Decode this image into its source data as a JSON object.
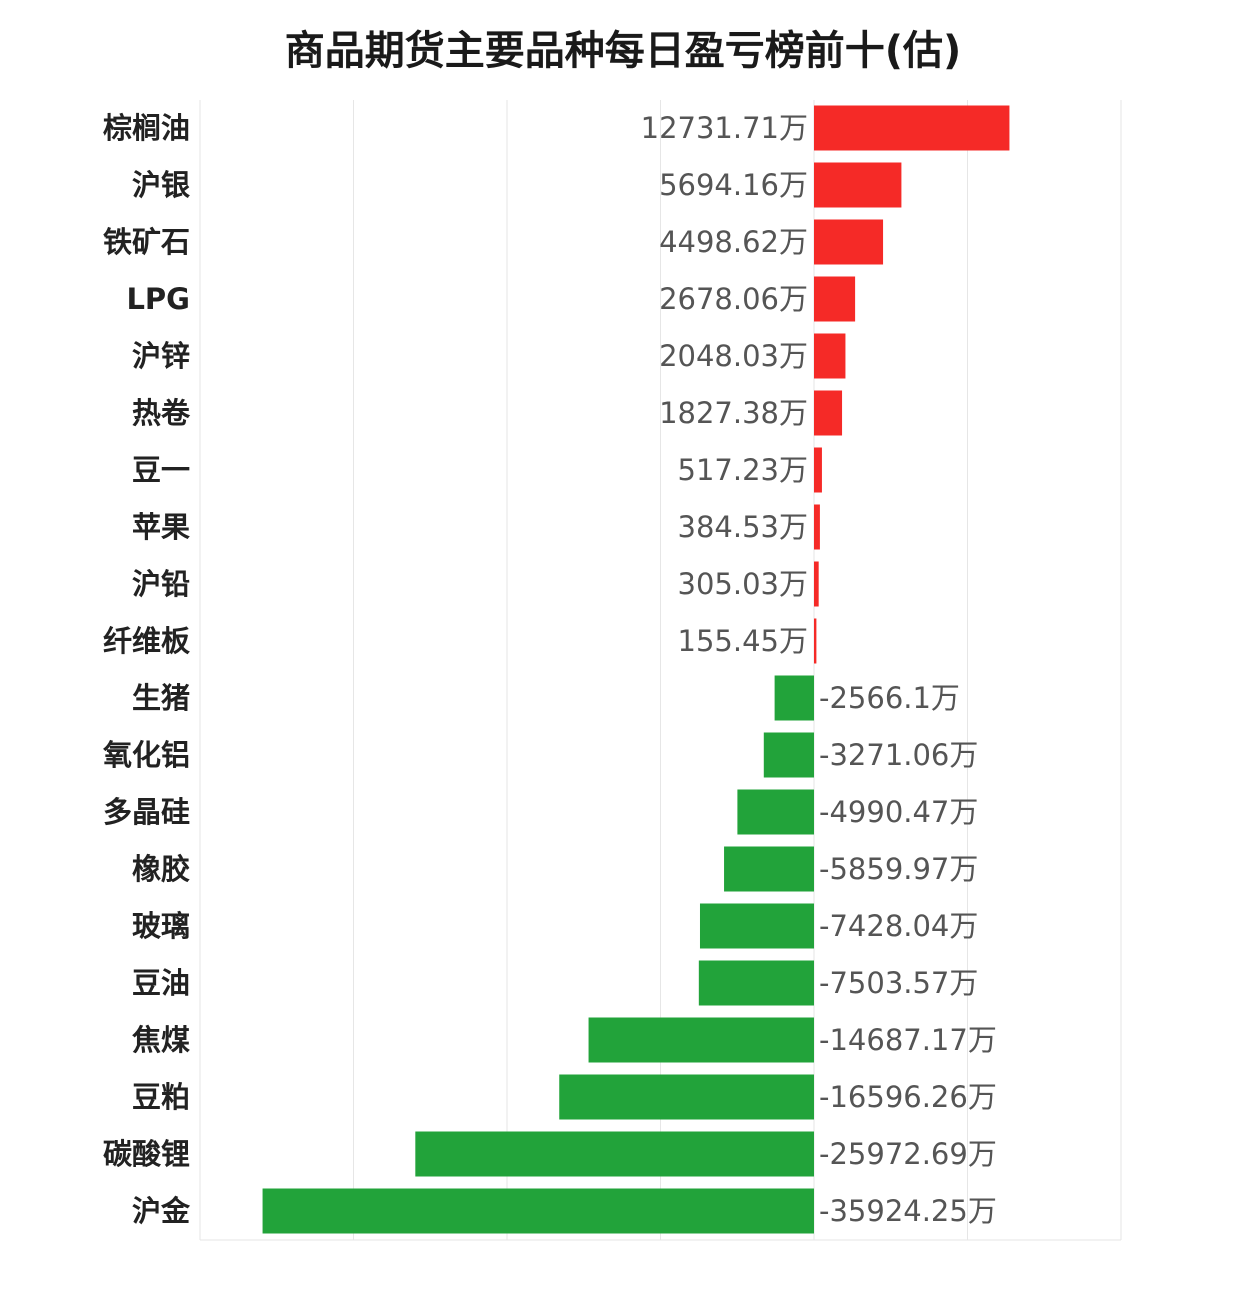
{
  "chart_data": {
    "type": "bar",
    "orientation": "horizontal",
    "title": "商品期货主要品种每日盈亏榜前十(估)",
    "unit": "万",
    "categories": [
      "棕榈油",
      "沪银",
      "铁矿石",
      "LPG",
      "沪锌",
      "热卷",
      "豆一",
      "苹果",
      "沪铅",
      "纤维板",
      "生猪",
      "氧化铝",
      "多晶硅",
      "橡胶",
      "玻璃",
      "豆油",
      "焦煤",
      "豆粕",
      "碳酸锂",
      "沪金"
    ],
    "values": [
      12731.71,
      5694.16,
      4498.62,
      2678.06,
      2048.03,
      1827.38,
      517.23,
      384.53,
      305.03,
      155.45,
      -2566.1,
      -3271.06,
      -4990.47,
      -5859.97,
      -7428.04,
      -7503.57,
      -14687.17,
      -16596.26,
      -25972.69,
      -35924.25
    ],
    "value_labels": [
      "12731.71万",
      "5694.16万",
      "4498.62万",
      "2678.06万",
      "2048.03万",
      "1827.38万",
      "517.23万",
      "384.53万",
      "305.03万",
      "155.45万",
      "-2566.1万",
      "-3271.06万",
      "-4990.47万",
      "-5859.97万",
      "-7428.04万",
      "-7503.57万",
      "-14687.17万",
      "-16596.26万",
      "-25972.69万",
      "-35924.25万"
    ],
    "xlim": [
      -40000,
      20000
    ],
    "grid": true,
    "legend": "none",
    "colors": {
      "positive": "#f52a27",
      "negative": "#22a33a"
    }
  }
}
